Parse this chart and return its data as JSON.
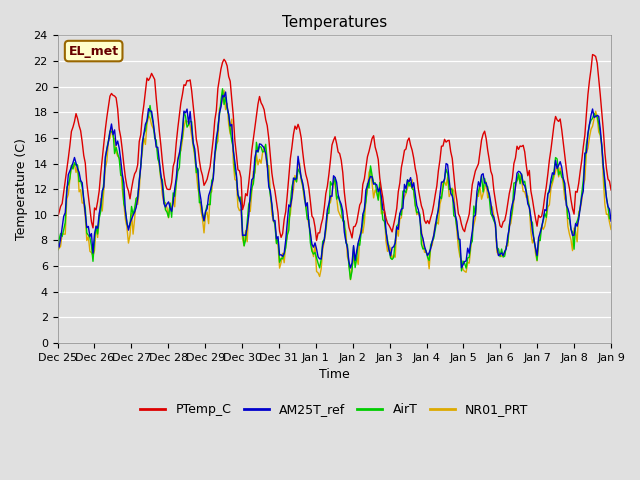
{
  "title": "Temperatures",
  "xlabel": "Time",
  "ylabel": "Temperature (C)",
  "ylim": [
    0,
    24
  ],
  "yticks": [
    0,
    2,
    4,
    6,
    8,
    10,
    12,
    14,
    16,
    18,
    20,
    22,
    24
  ],
  "xtick_labels": [
    "Dec 25",
    "Dec 26",
    "Dec 27",
    "Dec 28",
    "Dec 29",
    "Dec 30",
    "Dec 31",
    "Jan 1",
    "Jan 2",
    "Jan 3",
    "Jan 4",
    "Jan 5",
    "Jan 6",
    "Jan 7",
    "Jan 8",
    "Jan 9"
  ],
  "series_colors": {
    "PTemp_C": "#dd0000",
    "AM25T_ref": "#0000cc",
    "AirT": "#00cc00",
    "NR01_PRT": "#ddaa00"
  },
  "background_color": "#e0e0e0",
  "plot_bg_color": "#e0e0e0",
  "annotation_text": "EL_met",
  "annotation_bg": "#ffffcc",
  "annotation_border": "#996600",
  "linewidth": 1.0,
  "title_fontsize": 11,
  "axis_fontsize": 9,
  "tick_fontsize": 8
}
